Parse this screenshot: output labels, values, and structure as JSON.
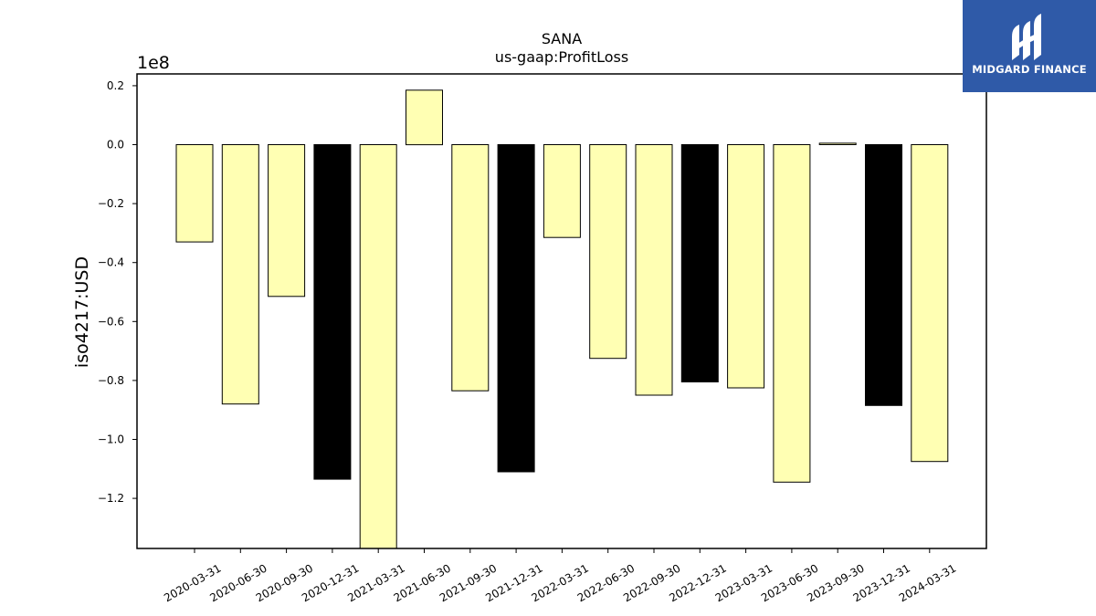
{
  "logo": {
    "text": "MIDGARD FINANCE",
    "background": "#2f5aa8",
    "icon": "midgard-finance-logo-icon"
  },
  "chart_data": {
    "type": "bar",
    "title": "SANA",
    "subtitle": "us-gaap:ProfitLoss",
    "xlabel": "",
    "ylabel": "iso4217:USD",
    "y_scale_label": "1e8",
    "y_scale": 100000000,
    "ylim": [
      -1.37,
      0.24
    ],
    "yticks": [
      0.2,
      0.0,
      -0.2,
      -0.4,
      -0.6,
      -0.8,
      -1.0,
      -1.2
    ],
    "ytick_labels": [
      "0.2",
      "0.0",
      "−0.2",
      "−0.4",
      "−0.6",
      "−0.8",
      "−1.0",
      "−1.2"
    ],
    "grid": false,
    "legend": "none",
    "colors": {
      "q": "#ffffb3",
      "fy": "#000000",
      "edge": "#000000"
    },
    "categories": [
      "2020-03-31",
      "2020-06-30",
      "2020-09-30",
      "2020-12-31",
      "2021-03-31",
      "2021-06-30",
      "2021-09-30",
      "2021-12-31",
      "2022-03-31",
      "2022-06-30",
      "2022-09-30",
      "2022-12-31",
      "2023-03-31",
      "2023-06-30",
      "2023-09-30",
      "2023-12-31",
      "2024-03-31"
    ],
    "values": [
      -0.33,
      -0.88,
      -0.515,
      -1.135,
      -1.38,
      0.185,
      -0.835,
      -1.11,
      -0.315,
      -0.725,
      -0.85,
      -0.805,
      -0.825,
      -1.145,
      0.005,
      -0.885,
      -1.075
    ],
    "bar_colors": [
      "#ffffb3",
      "#ffffb3",
      "#ffffb3",
      "#000000",
      "#ffffb3",
      "#ffffb3",
      "#ffffb3",
      "#000000",
      "#ffffb3",
      "#ffffb3",
      "#ffffb3",
      "#000000",
      "#ffffb3",
      "#ffffb3",
      "#ffffb3",
      "#000000",
      "#ffffb3"
    ]
  }
}
